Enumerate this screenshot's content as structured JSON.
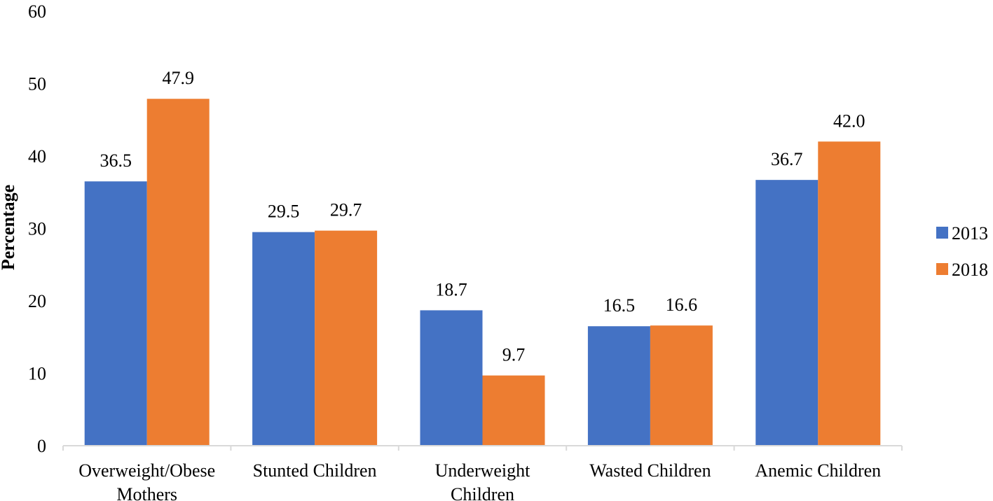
{
  "chart_data": {
    "type": "bar",
    "categories": [
      [
        "Overweight/Obese",
        "Mothers"
      ],
      [
        "Stunted Children"
      ],
      [
        "Underweight",
        "Children"
      ],
      [
        "Wasted Children"
      ],
      [
        "Anemic Children"
      ]
    ],
    "series": [
      {
        "name": "2013",
        "color": "#4472C4",
        "values": [
          36.5,
          29.5,
          18.7,
          16.5,
          36.7
        ],
        "labels": [
          "36.5",
          "29.5",
          "18.7",
          "16.5",
          "36.7"
        ]
      },
      {
        "name": "2018",
        "color": "#ED7D31",
        "values": [
          47.9,
          29.7,
          9.7,
          16.6,
          42.0
        ],
        "labels": [
          "47.9",
          "29.7",
          "9.7",
          "16.6",
          "42.0"
        ]
      }
    ],
    "ylabel": "Percentage",
    "xlabel": "",
    "ylim": [
      0,
      60
    ],
    "yticks": [
      "0",
      "10",
      "20",
      "30",
      "40",
      "50",
      "60"
    ],
    "grid": false,
    "legend_position": "right"
  }
}
